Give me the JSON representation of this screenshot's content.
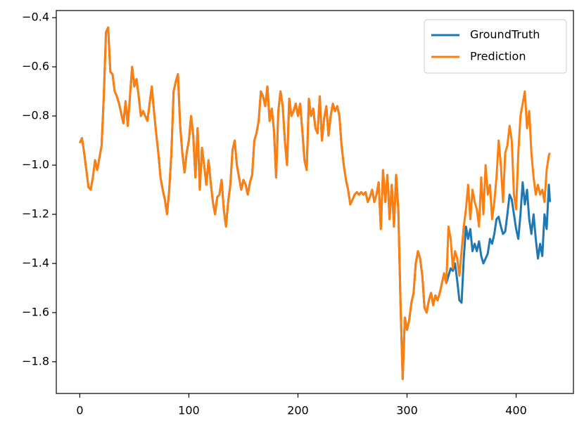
{
  "chart_data": {
    "type": "line",
    "x": [
      0,
      2,
      4,
      6,
      8,
      10,
      12,
      14,
      16,
      18,
      20,
      22,
      24,
      26,
      28,
      30,
      32,
      34,
      36,
      38,
      40,
      42,
      44,
      46,
      48,
      50,
      52,
      54,
      56,
      58,
      60,
      62,
      64,
      66,
      68,
      70,
      72,
      74,
      76,
      78,
      80,
      82,
      84,
      86,
      88,
      90,
      92,
      94,
      96,
      98,
      100,
      102,
      104,
      106,
      108,
      110,
      112,
      114,
      116,
      118,
      120,
      122,
      124,
      126,
      128,
      130,
      132,
      134,
      136,
      138,
      140,
      142,
      144,
      146,
      148,
      150,
      152,
      154,
      156,
      158,
      160,
      162,
      164,
      166,
      168,
      170,
      172,
      174,
      176,
      178,
      180,
      182,
      184,
      186,
      188,
      190,
      192,
      194,
      196,
      198,
      200,
      202,
      204,
      206,
      208,
      210,
      212,
      214,
      216,
      218,
      220,
      222,
      224,
      226,
      228,
      230,
      232,
      234,
      236,
      238,
      240,
      242,
      244,
      246,
      248,
      250,
      252,
      254,
      256,
      258,
      260,
      262,
      264,
      266,
      268,
      270,
      272,
      274,
      276,
      278,
      280,
      282,
      284,
      286,
      288,
      290,
      292,
      294,
      296,
      298,
      300,
      302,
      304,
      306,
      308,
      310,
      312,
      314,
      316,
      318,
      320,
      322,
      324,
      326,
      328,
      330,
      332,
      334,
      336,
      338,
      340,
      342,
      344,
      346,
      348,
      350,
      352,
      354,
      356,
      358,
      360,
      362,
      364,
      366,
      368,
      370,
      372,
      374,
      376,
      378,
      380,
      382,
      384,
      386,
      388,
      390,
      392,
      394,
      396,
      398,
      400,
      402,
      404,
      406,
      408,
      410,
      412,
      414,
      416,
      418,
      420,
      422,
      424,
      426,
      428,
      430,
      431
    ],
    "series": [
      {
        "name": "GroundTruth",
        "color": "#1f77b4",
        "values": [
          -0.91,
          -0.89,
          -0.95,
          -1.02,
          -1.09,
          -1.1,
          -1.05,
          -0.98,
          -1.02,
          -0.97,
          -0.92,
          -0.72,
          -0.46,
          -0.44,
          -0.62,
          -0.63,
          -0.7,
          -0.72,
          -0.75,
          -0.79,
          -0.83,
          -0.74,
          -0.84,
          -0.72,
          -0.6,
          -0.68,
          -0.65,
          -0.72,
          -0.8,
          -0.78,
          -0.8,
          -0.82,
          -0.75,
          -0.68,
          -0.78,
          -0.87,
          -0.95,
          -1.05,
          -1.1,
          -1.14,
          -1.2,
          -1.1,
          -0.95,
          -0.7,
          -0.66,
          -0.63,
          -0.84,
          -0.95,
          -1.03,
          -0.95,
          -0.9,
          -0.8,
          -0.88,
          -1.05,
          -0.85,
          -1.1,
          -0.93,
          -1.0,
          -1.08,
          -0.98,
          -1.07,
          -1.15,
          -1.2,
          -1.13,
          -1.12,
          -1.06,
          -1.18,
          -1.25,
          -1.15,
          -1.08,
          -0.94,
          -0.9,
          -1.0,
          -1.05,
          -1.1,
          -1.06,
          -1.08,
          -1.12,
          -1.07,
          -1.04,
          -0.9,
          -0.87,
          -0.82,
          -0.7,
          -0.72,
          -0.76,
          -0.68,
          -0.82,
          -0.77,
          -0.86,
          -1.05,
          -0.78,
          -0.7,
          -0.76,
          -0.9,
          -1.0,
          -0.73,
          -0.8,
          -0.78,
          -0.75,
          -0.8,
          -0.75,
          -0.86,
          -0.98,
          -1.02,
          -0.73,
          -0.8,
          -0.77,
          -0.85,
          -0.87,
          -0.72,
          -0.9,
          -0.81,
          -0.76,
          -0.88,
          -0.8,
          -0.75,
          -0.78,
          -0.76,
          -0.8,
          -0.92,
          -1.0,
          -1.06,
          -1.1,
          -1.16,
          -1.14,
          -1.12,
          -1.11,
          -1.12,
          -1.11,
          -1.12,
          -1.11,
          -1.15,
          -1.13,
          -1.1,
          -1.15,
          -1.12,
          -1.07,
          -1.26,
          -1.02,
          -1.15,
          -1.04,
          -1.22,
          -1.08,
          -1.25,
          -1.04,
          -1.18,
          -1.56,
          -1.87,
          -1.62,
          -1.67,
          -1.63,
          -1.56,
          -1.52,
          -1.4,
          -1.35,
          -1.38,
          -1.45,
          -1.58,
          -1.6,
          -1.55,
          -1.52,
          -1.57,
          -1.53,
          -1.55,
          -1.52,
          -1.48,
          -1.44,
          -1.48,
          -1.45,
          -1.42,
          -1.43,
          -1.4,
          -1.47,
          -1.55,
          -1.56,
          -1.38,
          -1.25,
          -1.3,
          -1.26,
          -1.35,
          -1.32,
          -1.35,
          -1.31,
          -1.37,
          -1.4,
          -1.38,
          -1.36,
          -1.3,
          -1.32,
          -1.28,
          -1.22,
          -1.21,
          -1.25,
          -1.28,
          -1.27,
          -1.2,
          -1.12,
          -1.14,
          -1.2,
          -1.26,
          -1.3,
          -1.2,
          -1.07,
          -1.16,
          -1.1,
          -1.22,
          -1.28,
          -1.2,
          -1.3,
          -1.38,
          -1.32,
          -1.37,
          -1.2,
          -1.26,
          -1.08,
          -1.15
        ]
      },
      {
        "name": "Prediction",
        "color": "#ff7f0e",
        "values": [
          -0.91,
          -0.89,
          -0.95,
          -1.02,
          -1.09,
          -1.1,
          -1.05,
          -0.98,
          -1.02,
          -0.97,
          -0.92,
          -0.72,
          -0.46,
          -0.44,
          -0.62,
          -0.63,
          -0.7,
          -0.72,
          -0.75,
          -0.79,
          -0.83,
          -0.74,
          -0.84,
          -0.72,
          -0.6,
          -0.68,
          -0.65,
          -0.72,
          -0.8,
          -0.78,
          -0.8,
          -0.82,
          -0.75,
          -0.68,
          -0.78,
          -0.87,
          -0.95,
          -1.05,
          -1.1,
          -1.14,
          -1.2,
          -1.1,
          -0.95,
          -0.7,
          -0.66,
          -0.63,
          -0.84,
          -0.95,
          -1.03,
          -0.95,
          -0.9,
          -0.8,
          -0.88,
          -1.05,
          -0.85,
          -1.1,
          -0.93,
          -1.0,
          -1.08,
          -0.98,
          -1.07,
          -1.15,
          -1.2,
          -1.13,
          -1.12,
          -1.06,
          -1.18,
          -1.25,
          -1.15,
          -1.08,
          -0.94,
          -0.9,
          -1.0,
          -1.05,
          -1.1,
          -1.06,
          -1.08,
          -1.12,
          -1.07,
          -1.04,
          -0.9,
          -0.87,
          -0.82,
          -0.7,
          -0.72,
          -0.76,
          -0.68,
          -0.82,
          -0.77,
          -0.86,
          -1.05,
          -0.78,
          -0.7,
          -0.76,
          -0.9,
          -1.0,
          -0.73,
          -0.8,
          -0.78,
          -0.75,
          -0.8,
          -0.75,
          -0.86,
          -0.98,
          -1.02,
          -0.73,
          -0.8,
          -0.77,
          -0.85,
          -0.87,
          -0.72,
          -0.9,
          -0.81,
          -0.76,
          -0.88,
          -0.8,
          -0.75,
          -0.78,
          -0.76,
          -0.8,
          -0.92,
          -1.0,
          -1.06,
          -1.1,
          -1.16,
          -1.14,
          -1.12,
          -1.11,
          -1.12,
          -1.11,
          -1.12,
          -1.11,
          -1.15,
          -1.13,
          -1.1,
          -1.15,
          -1.12,
          -1.07,
          -1.26,
          -1.02,
          -1.15,
          -1.04,
          -1.22,
          -1.08,
          -1.25,
          -1.04,
          -1.18,
          -1.56,
          -1.87,
          -1.62,
          -1.67,
          -1.63,
          -1.56,
          -1.52,
          -1.4,
          -1.35,
          -1.38,
          -1.45,
          -1.58,
          -1.6,
          -1.55,
          -1.52,
          -1.57,
          -1.53,
          -1.55,
          -1.52,
          -1.48,
          -1.44,
          -1.48,
          -1.25,
          -1.3,
          -1.42,
          -1.35,
          -1.38,
          -1.45,
          -1.35,
          -1.25,
          -1.18,
          -1.08,
          -1.22,
          -1.1,
          -1.15,
          -1.18,
          -1.25,
          -1.05,
          -1.2,
          -1.0,
          -1.12,
          -1.08,
          -1.22,
          -1.15,
          -1.05,
          -0.9,
          -1.0,
          -1.15,
          -0.95,
          -0.92,
          -0.84,
          -0.9,
          -1.12,
          -1.18,
          -0.95,
          -0.8,
          -0.75,
          -0.7,
          -0.85,
          -0.78,
          -0.95,
          -1.05,
          -1.12,
          -1.08,
          -1.12,
          -1.1,
          -1.15,
          -1.02,
          -0.96,
          -0.95
        ]
      }
    ],
    "xlim": [
      -21.55,
      452.55
    ],
    "xticks": [
      0,
      100,
      200,
      300,
      400
    ],
    "ylim": [
      -1.929,
      -0.371
    ],
    "yticks": [
      {
        "value": -1.8,
        "label": "−1.8"
      },
      {
        "value": -1.6,
        "label": "−1.6"
      },
      {
        "value": -1.4,
        "label": "−1.4"
      },
      {
        "value": -1.2,
        "label": "−1.2"
      },
      {
        "value": -1.0,
        "label": "−1.0"
      },
      {
        "value": -0.8,
        "label": "−0.8"
      },
      {
        "value": -0.6,
        "label": "−0.6"
      },
      {
        "value": -0.4,
        "label": "−0.4"
      }
    ],
    "grid": false,
    "legend": "upper right"
  }
}
